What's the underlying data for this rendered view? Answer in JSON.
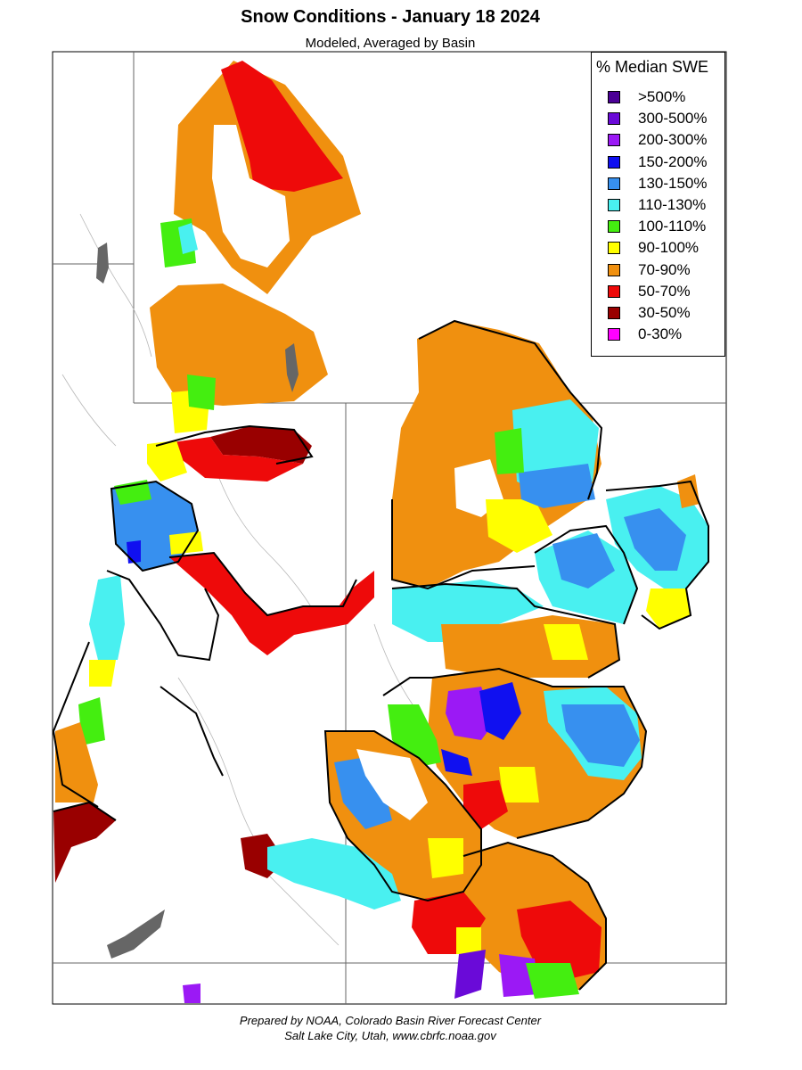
{
  "title": "Snow Conditions - January 18 2024",
  "subtitle": "Modeled, Averaged by Basin",
  "legend": {
    "title": "% Median SWE",
    "items": [
      {
        "label": ">500%",
        "color": "#4b0096"
      },
      {
        "label": "300-500%",
        "color": "#6a0ad8"
      },
      {
        "label": "200-300%",
        "color": "#9b19f5"
      },
      {
        "label": "150-200%",
        "color": "#1010f0"
      },
      {
        "label": "130-150%",
        "color": "#3790ef"
      },
      {
        "label": "110-130%",
        "color": "#49f0f0"
      },
      {
        "label": "100-110%",
        "color": "#44ee10"
      },
      {
        "label": "90-100%",
        "color": "#ffff00"
      },
      {
        "label": "70-90%",
        "color": "#f0900f"
      },
      {
        "label": "50-70%",
        "color": "#ee0a0a"
      },
      {
        "label": "30-50%",
        "color": "#990000"
      },
      {
        "label": "0-30%",
        "color": "#ff00ff"
      }
    ]
  },
  "credit": {
    "line1": "Prepared by NOAA, Colorado Basin River Forecast Center",
    "line2": "Salt Lake City, Utah, www.cbrfc.noaa.gov"
  }
}
